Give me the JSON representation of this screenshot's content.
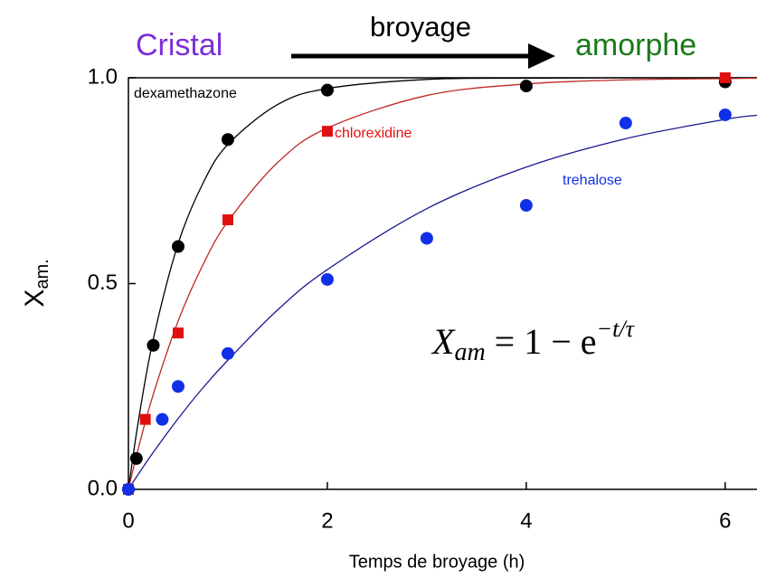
{
  "chart_data": {
    "type": "scatter",
    "annotations": {
      "left": "Cristal",
      "arrow": "broyage",
      "right": "amorphe"
    },
    "formula": {
      "main": "X",
      "sub": "am",
      "rest": " = 1 − e",
      "sup": "−t/τ"
    },
    "xlabel": "Temps de broyage (h)",
    "ylabel": {
      "main": "X",
      "sub": "am."
    },
    "xlim": [
      0,
      6.32
    ],
    "ylim": [
      0,
      1.0
    ],
    "xticks": [
      0,
      2,
      4,
      6
    ],
    "yticks": [
      {
        "value": 0,
        "label": "0.0"
      },
      0.5,
      {
        "value": 1,
        "label": "1.0"
      }
    ],
    "grid": false,
    "series": [
      {
        "name": "dexamethazone",
        "color": "#000000",
        "marker": "circle",
        "x": [
          0,
          0.08,
          0.25,
          0.5,
          1,
          2,
          4,
          6
        ],
        "values": [
          0,
          0.075,
          0.35,
          0.59,
          0.85,
          0.97,
          0.98,
          0.99
        ]
      },
      {
        "name": "chlorexidine",
        "color": "#e01010",
        "marker": "square",
        "x": [
          0,
          0.17,
          0.5,
          1,
          2,
          6
        ],
        "values": [
          0,
          0.17,
          0.38,
          0.655,
          0.87,
          1.0
        ]
      },
      {
        "name": "trehalose",
        "color": "#1030e8",
        "marker": "circle",
        "x": [
          0,
          0.34,
          0.5,
          1,
          2,
          3,
          4,
          5,
          6
        ],
        "values": [
          0,
          0.17,
          0.25,
          0.33,
          0.51,
          0.61,
          0.69,
          0.89,
          0.91
        ]
      }
    ],
    "fit_x": [
      0,
      0.1,
      0.25,
      0.5,
      0.75,
      1,
      1.5,
      2,
      3,
      4,
      5,
      6,
      6.32
    ],
    "fits": [
      {
        "color": "#000000",
        "values": [
          0,
          0.166,
          0.365,
          0.597,
          0.744,
          0.838,
          0.935,
          0.974,
          0.996,
          0.999,
          1.0,
          1.0,
          1.0
        ]
      },
      {
        "color": "#c02828",
        "values": [
          0,
          0.1,
          0.231,
          0.409,
          0.546,
          0.651,
          0.794,
          0.878,
          0.957,
          0.985,
          0.995,
          0.998,
          0.999
        ]
      },
      {
        "color": "#1a1a90",
        "values": [
          0,
          0.037,
          0.09,
          0.172,
          0.247,
          0.314,
          0.436,
          0.534,
          0.682,
          0.783,
          0.852,
          0.899,
          0.909
        ]
      }
    ]
  }
}
